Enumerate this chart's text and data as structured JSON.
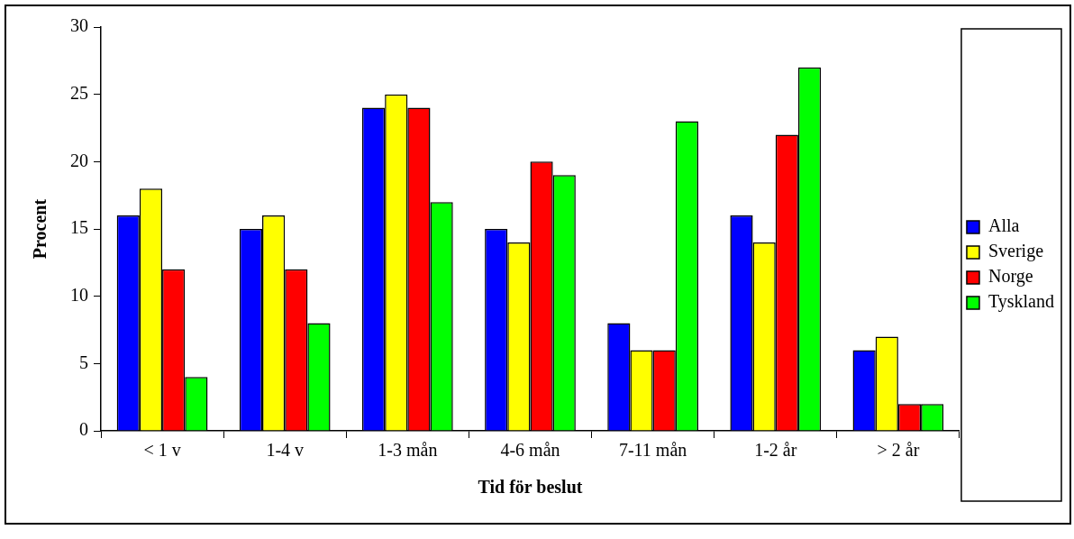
{
  "chart_data": {
    "type": "bar",
    "xlabel": "Tid för beslut",
    "ylabel": "Procent",
    "categories": [
      "< 1 v",
      "1-4 v",
      "1-3 mån",
      "4-6 mån",
      "7-11 mån",
      "1-2 år",
      "> 2 år"
    ],
    "series": [
      {
        "name": "Alla",
        "color": "#0000ff",
        "values": [
          16,
          15,
          24,
          15,
          8,
          16,
          6
        ]
      },
      {
        "name": "Sverige",
        "color": "#ffff00",
        "values": [
          18,
          16,
          25,
          14,
          6,
          14,
          7
        ]
      },
      {
        "name": "Norge",
        "color": "#ff0000",
        "values": [
          12,
          12,
          24,
          20,
          6,
          22,
          2
        ]
      },
      {
        "name": "Tyskland",
        "color": "#00ff00",
        "values": [
          4,
          8,
          17,
          19,
          23,
          27,
          2
        ]
      }
    ],
    "ylim": [
      0,
      30
    ],
    "yticks": [
      0,
      5,
      10,
      15,
      20,
      25,
      30
    ],
    "grid": false,
    "legend": "right"
  }
}
